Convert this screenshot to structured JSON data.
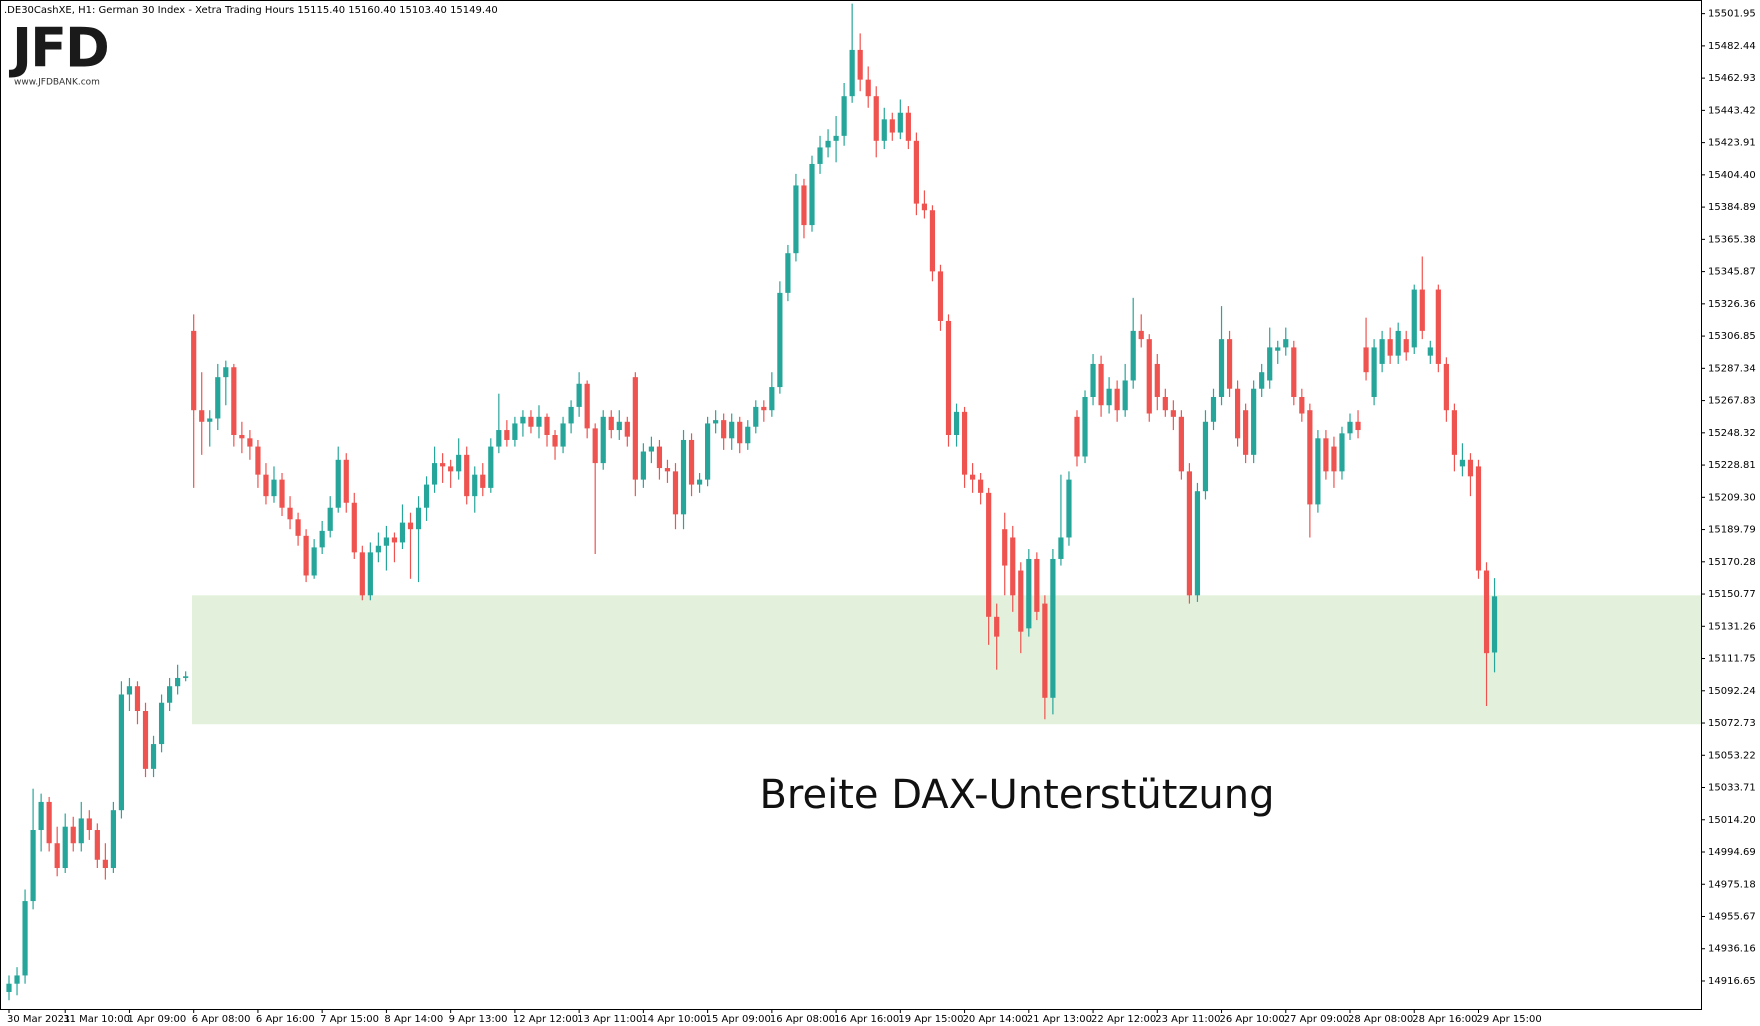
{
  "chart_data": {
    "type": "candlestick",
    "header": ".DE30CashXE, H1:  German 30 Index - Xetra Trading Hours  15115.40 15160.40 15103.40 15149.40",
    "logo": "JFD",
    "logo_url": "www.JFDBANK.com",
    "annotation": "Breite DAX-Unterstützung",
    "up_color": "#26a69a",
    "down_color": "#ef5350",
    "zone": {
      "ylim": [
        15072,
        15150
      ],
      "color": "#e3f1dc"
    },
    "grid": false,
    "ylim": [
      14899.7,
      15510.2
    ],
    "yticks": [
      15501.95,
      15482.44,
      15462.93,
      15443.42,
      15423.91,
      {
        "value": 15404.4,
        "label": "15404.40"
      },
      15384.89,
      15365.38,
      15345.87,
      15326.36,
      15306.85,
      15287.34,
      15267.83,
      15248.32,
      15228.81,
      {
        "value": 15209.3,
        "label": "15209.30"
      },
      15189.79,
      15170.28,
      15150.77,
      15131.26,
      15111.75,
      15092.24,
      15072.73,
      15053.22,
      15033.71,
      {
        "value": 15014.2,
        "label": "15014.20"
      },
      14994.69,
      14975.18,
      14955.67,
      14936.16,
      14916.65
    ],
    "categories": [
      "30 Mar 2021",
      null,
      null,
      null,
      null,
      null,
      null,
      "31 Mar 10:00",
      null,
      null,
      null,
      null,
      null,
      null,
      null,
      "1 Apr 09:00",
      null,
      null,
      null,
      null,
      null,
      null,
      null,
      "6 Apr 08:00",
      null,
      null,
      null,
      null,
      null,
      null,
      null,
      "6 Apr 16:00",
      null,
      null,
      null,
      null,
      null,
      null,
      null,
      "7 Apr 15:00",
      null,
      null,
      null,
      null,
      null,
      null,
      null,
      "8 Apr 14:00",
      null,
      null,
      null,
      null,
      null,
      null,
      null,
      "9 Apr 13:00",
      null,
      null,
      null,
      null,
      null,
      null,
      null,
      "12 Apr 12:00",
      null,
      null,
      null,
      null,
      null,
      null,
      null,
      "13 Apr 11:00",
      null,
      null,
      null,
      null,
      null,
      null,
      null,
      "14 Apr 10:00",
      null,
      null,
      null,
      null,
      null,
      null,
      null,
      "15 Apr 09:00",
      null,
      null,
      null,
      null,
      null,
      null,
      null,
      "16 Apr 08:00",
      null,
      null,
      null,
      null,
      null,
      null,
      null,
      "16 Apr 16:00",
      null,
      null,
      null,
      null,
      null,
      null,
      null,
      "19 Apr 15:00",
      null,
      null,
      null,
      null,
      null,
      null,
      null,
      "20 Apr 14:00",
      null,
      null,
      null,
      null,
      null,
      null,
      null,
      "21 Apr 13:00",
      null,
      null,
      null,
      null,
      null,
      null,
      null,
      "22 Apr 12:00",
      null,
      null,
      null,
      null,
      null,
      null,
      null,
      "23 Apr 11:00",
      null,
      null,
      null,
      null,
      null,
      null,
      null,
      "26 Apr 10:00",
      null,
      null,
      null,
      null,
      null,
      null,
      null,
      "27 Apr 09:00",
      null,
      null,
      null,
      null,
      null,
      null,
      null,
      "28 Apr 08:00",
      null,
      null,
      null,
      null,
      null,
      null,
      null,
      "28 Apr 16:00",
      null,
      null,
      null,
      null,
      null,
      null,
      null,
      "29 Apr 15:00",
      null,
      null
    ],
    "ohlc": [
      [
        14910,
        14920,
        14905,
        14915
      ],
      [
        14915,
        14925,
        14908,
        14920
      ],
      [
        14920,
        14972,
        14915,
        14965
      ],
      [
        14965,
        15033,
        14960,
        15008
      ],
      [
        15008,
        15030,
        14995,
        15025
      ],
      [
        15025,
        15028,
        14995,
        15000
      ],
      [
        15000,
        15010,
        14980,
        14985
      ],
      [
        14985,
        15018,
        14982,
        15010
      ],
      [
        15010,
        15016,
        14995,
        15000
      ],
      [
        15000,
        15025,
        14995,
        15015
      ],
      [
        15015,
        15020,
        15002,
        15008
      ],
      [
        15008,
        15012,
        14985,
        14990
      ],
      [
        14990,
        15000,
        14978,
        14985
      ],
      [
        14985,
        15025,
        14982,
        15020
      ],
      [
        15020,
        15098,
        15015,
        15090
      ],
      [
        15090,
        15100,
        15080,
        15095
      ],
      [
        15095,
        15098,
        15072,
        15080
      ],
      [
        15080,
        15085,
        15040,
        15045
      ],
      [
        15045,
        15065,
        15040,
        15060
      ],
      [
        15060,
        15090,
        15055,
        15085
      ],
      [
        15085,
        15100,
        15080,
        15095
      ],
      [
        15095,
        15108,
        15090,
        15100
      ],
      [
        15100,
        15104,
        15098,
        15101
      ],
      [
        15310,
        15320,
        15215,
        15262
      ],
      [
        15262,
        15285,
        15235,
        15255
      ],
      [
        15255,
        15262,
        15240,
        15257
      ],
      [
        15257,
        15290,
        15250,
        15282
      ],
      [
        15282,
        15292,
        15265,
        15288
      ],
      [
        15288,
        15290,
        15240,
        15247
      ],
      [
        15247,
        15255,
        15236,
        15245
      ],
      [
        15245,
        15250,
        15232,
        15240
      ],
      [
        15240,
        15244,
        15215,
        15223
      ],
      [
        15223,
        15230,
        15205,
        15210
      ],
      [
        15210,
        15228,
        15206,
        15220
      ],
      [
        15220,
        15224,
        15198,
        15203
      ],
      [
        15203,
        15210,
        15190,
        15196
      ],
      [
        15196,
        15200,
        15180,
        15186
      ],
      [
        15186,
        15190,
        15158,
        15162
      ],
      [
        15162,
        15184,
        15160,
        15179
      ],
      [
        15179,
        15195,
        15175,
        15189
      ],
      [
        15189,
        15210,
        15185,
        15203
      ],
      [
        15203,
        15240,
        15200,
        15232
      ],
      [
        15232,
        15236,
        15200,
        15206
      ],
      [
        15206,
        15212,
        15172,
        15176
      ],
      [
        15176,
        15180,
        15147,
        15150
      ],
      [
        15150,
        15182,
        15147,
        15176
      ],
      [
        15176,
        15188,
        15170,
        15180
      ],
      [
        15180,
        15192,
        15165,
        15185
      ],
      [
        15185,
        15188,
        15170,
        15182
      ],
      [
        15182,
        15205,
        15178,
        15194
      ],
      [
        15194,
        15200,
        15160,
        15190
      ],
      [
        15190,
        15210,
        15158,
        15203
      ],
      [
        15203,
        15222,
        15195,
        15217
      ],
      [
        15217,
        15240,
        15212,
        15230
      ],
      [
        15230,
        15236,
        15218,
        15228
      ],
      [
        15228,
        15232,
        15215,
        15225
      ],
      [
        15225,
        15245,
        15220,
        15235
      ],
      [
        15235,
        15240,
        15205,
        15210
      ],
      [
        15210,
        15228,
        15200,
        15223
      ],
      [
        15223,
        15230,
        15210,
        15215
      ],
      [
        15215,
        15245,
        15212,
        15240
      ],
      [
        15240,
        15272,
        15236,
        15250
      ],
      [
        15250,
        15256,
        15240,
        15244
      ],
      [
        15244,
        15258,
        15240,
        15254
      ],
      [
        15254,
        15262,
        15246,
        15258
      ],
      [
        15258,
        15262,
        15248,
        15252
      ],
      [
        15252,
        15265,
        15245,
        15258
      ],
      [
        15258,
        15260,
        15240,
        15247
      ],
      [
        15247,
        15250,
        15232,
        15240
      ],
      [
        15240,
        15258,
        15236,
        15254
      ],
      [
        15254,
        15268,
        15248,
        15264
      ],
      [
        15264,
        15285,
        15258,
        15278
      ],
      [
        15278,
        15280,
        15245,
        15251
      ],
      [
        15251,
        15254,
        15175,
        15230
      ],
      [
        15230,
        15262,
        15226,
        15258
      ],
      [
        15258,
        15262,
        15245,
        15250
      ],
      [
        15250,
        15262,
        15244,
        15255
      ],
      [
        15255,
        15258,
        15240,
        15246
      ],
      [
        15282,
        15285,
        15210,
        15220
      ],
      [
        15220,
        15242,
        15215,
        15237
      ],
      [
        15237,
        15246,
        15230,
        15240
      ],
      [
        15240,
        15244,
        15220,
        15227
      ],
      [
        15227,
        15232,
        15218,
        15225
      ],
      [
        15225,
        15230,
        15190,
        15199
      ],
      [
        15199,
        15250,
        15190,
        15244
      ],
      [
        15244,
        15248,
        15210,
        15217
      ],
      [
        15217,
        15224,
        15212,
        15220
      ],
      [
        15220,
        15258,
        15216,
        15254
      ],
      [
        15254,
        15262,
        15248,
        15256
      ],
      [
        15256,
        15260,
        15238,
        15245
      ],
      [
        15245,
        15260,
        15238,
        15255
      ],
      [
        15255,
        15258,
        15236,
        15242
      ],
      [
        15242,
        15256,
        15238,
        15252
      ],
      [
        15252,
        15268,
        15248,
        15264
      ],
      [
        15264,
        15268,
        15255,
        15262
      ],
      [
        15262,
        15285,
        15258,
        15276
      ],
      [
        15276,
        15340,
        15272,
        15333
      ],
      [
        15333,
        15362,
        15328,
        15357
      ],
      [
        15357,
        15405,
        15352,
        15398
      ],
      [
        15398,
        15402,
        15366,
        15374
      ],
      [
        15374,
        15416,
        15370,
        15411
      ],
      [
        15411,
        15428,
        15405,
        15421
      ],
      [
        15421,
        15432,
        15415,
        15425
      ],
      [
        15425,
        15440,
        15412,
        15428
      ],
      [
        15428,
        15460,
        15422,
        15452
      ],
      [
        15452,
        15508,
        15448,
        15480
      ],
      [
        15480,
        15490,
        15455,
        15462
      ],
      [
        15462,
        15470,
        15445,
        15452
      ],
      [
        15452,
        15458,
        15415,
        15425
      ],
      [
        15425,
        15445,
        15420,
        15438
      ],
      [
        15438,
        15442,
        15425,
        15430
      ],
      [
        15430,
        15450,
        15426,
        15442
      ],
      [
        15442,
        15446,
        15420,
        15425
      ],
      [
        15425,
        15430,
        15380,
        15387
      ],
      [
        15387,
        15395,
        15378,
        15383
      ],
      [
        15383,
        15386,
        15340,
        15346
      ],
      [
        15346,
        15350,
        15310,
        15316
      ],
      [
        15316,
        15320,
        15240,
        15247
      ],
      [
        15247,
        15266,
        15240,
        15261
      ],
      [
        15261,
        15264,
        15215,
        15223
      ],
      [
        15223,
        15230,
        15212,
        15220
      ],
      [
        15220,
        15224,
        15205,
        15212
      ],
      [
        15212,
        15215,
        15120,
        15137
      ],
      [
        15137,
        15145,
        15105,
        15125
      ],
      [
        15190,
        15200,
        15150,
        15168
      ],
      [
        15185,
        15192,
        15140,
        15150
      ],
      [
        15165,
        15170,
        15115,
        15128
      ],
      [
        15130,
        15178,
        15125,
        15172
      ],
      [
        15172,
        15176,
        15135,
        15140
      ],
      [
        15145,
        15150,
        15075,
        15088
      ],
      [
        15088,
        15178,
        15078,
        15172
      ],
      [
        15172,
        15223,
        15168,
        15185
      ],
      [
        15185,
        15225,
        15180,
        15220
      ],
      [
        15258,
        15262,
        15228,
        15234
      ],
      [
        15234,
        15274,
        15230,
        15270
      ],
      [
        15270,
        15296,
        15265,
        15290
      ],
      [
        15290,
        15295,
        15258,
        15265
      ],
      [
        15265,
        15282,
        15260,
        15275
      ],
      [
        15275,
        15280,
        15255,
        15262
      ],
      [
        15262,
        15290,
        15258,
        15280
      ],
      [
        15280,
        15330,
        15275,
        15310
      ],
      [
        15310,
        15320,
        15300,
        15305
      ],
      [
        15305,
        15308,
        15255,
        15260
      ],
      [
        15290,
        15296,
        15262,
        15270
      ],
      [
        15270,
        15275,
        15258,
        15262
      ],
      [
        15262,
        15268,
        15250,
        15258
      ],
      [
        15258,
        15262,
        15220,
        15225
      ],
      [
        15225,
        15230,
        15145,
        15150
      ],
      [
        15150,
        15218,
        15146,
        15213
      ],
      [
        15213,
        15262,
        15208,
        15255
      ],
      [
        15255,
        15275,
        15250,
        15270
      ],
      [
        15270,
        15325,
        15265,
        15305
      ],
      [
        15305,
        15310,
        15270,
        15275
      ],
      [
        15275,
        15280,
        15240,
        15245
      ],
      [
        15262,
        15266,
        15230,
        15235
      ],
      [
        15235,
        15280,
        15230,
        15275
      ],
      [
        15275,
        15290,
        15270,
        15285
      ],
      [
        15280,
        15312,
        15275,
        15300
      ],
      [
        15298,
        15304,
        15290,
        15300
      ],
      [
        15300,
        15312,
        15295,
        15305
      ],
      [
        15300,
        15304,
        15265,
        15270
      ],
      [
        15270,
        15275,
        15255,
        15260
      ],
      [
        15262,
        15266,
        15185,
        15205
      ],
      [
        15205,
        15250,
        15200,
        15245
      ],
      [
        15245,
        15250,
        15220,
        15225
      ],
      [
        15240,
        15246,
        15215,
        15225
      ],
      [
        15225,
        15252,
        15220,
        15248
      ],
      [
        15248,
        15260,
        15244,
        15255
      ],
      [
        15255,
        15262,
        15245,
        15250
      ],
      [
        15300,
        15318,
        15280,
        15285
      ],
      [
        15270,
        15305,
        15265,
        15300
      ],
      [
        15290,
        15310,
        15285,
        15305
      ],
      [
        15305,
        15312,
        15290,
        15295
      ],
      [
        15295,
        15315,
        15290,
        15310
      ],
      [
        15305,
        15310,
        15292,
        15297
      ],
      [
        15300,
        15338,
        15296,
        15335
      ],
      [
        15335,
        15355,
        15305,
        15310
      ],
      [
        15295,
        15304,
        15290,
        15300
      ],
      [
        15335,
        15338,
        15285,
        15290
      ],
      [
        15290,
        15294,
        15255,
        15262
      ],
      [
        15262,
        15266,
        15225,
        15235
      ],
      [
        15228,
        15242,
        15222,
        15232
      ],
      [
        15232,
        15236,
        15210,
        15222
      ],
      [
        15228,
        15232,
        15160,
        15165
      ],
      [
        15165,
        15170,
        15083,
        15115
      ],
      [
        15115.4,
        15160.4,
        15103.4,
        15149.4
      ]
    ]
  }
}
